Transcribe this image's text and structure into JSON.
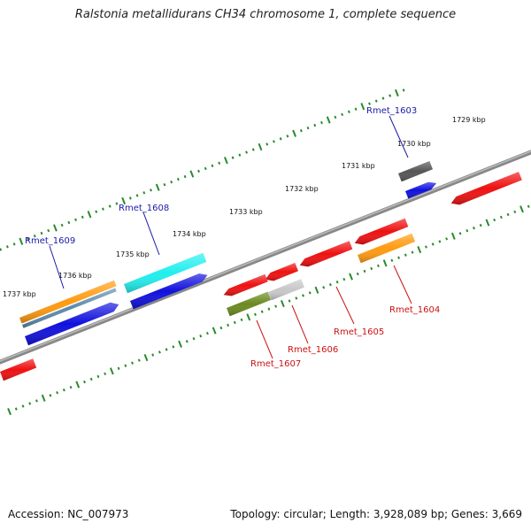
{
  "title": "Ralstonia metallidurans CH34 chromosome 1, complete sequence",
  "footer": {
    "accession": "Accession: NC_007973",
    "info": "Topology: circular; Length: 3,928,089 bp; Genes: 3,669"
  },
  "kbp_ticks": [
    {
      "label": "1729 kbp"
    },
    {
      "label": "1730 kbp"
    },
    {
      "label": "1731 kbp"
    },
    {
      "label": "1732 kbp"
    },
    {
      "label": "1733 kbp"
    },
    {
      "label": "1734 kbp"
    },
    {
      "label": "1735 kbp"
    },
    {
      "label": "1736 kbp"
    },
    {
      "label": "1737 kbp"
    }
  ],
  "gene_labels": [
    {
      "text": "Rmet_1603",
      "color": "#1a1aa8"
    },
    {
      "text": "Rmet_1608",
      "color": "#1a1aa8"
    },
    {
      "text": "Rmet_1609",
      "color": "#1a1aa8"
    },
    {
      "text": "Rmet_1604",
      "color": "#cc1111"
    },
    {
      "text": "Rmet_1605",
      "color": "#cc1111"
    },
    {
      "text": "Rmet_1606",
      "color": "#cc1111"
    },
    {
      "text": "Rmet_1607",
      "color": "#cc1111"
    }
  ],
  "colors": {
    "backbone": "#888888",
    "tick": "#2a8a2a",
    "red": "#ee1111",
    "blue": "#1010dd",
    "cyan": "#22eeee",
    "orange": "#ff9a10",
    "steelblue": "#5a8ab0",
    "gray": "#555555",
    "lightgray": "#c8c8c8",
    "olive": "#6a8a20"
  }
}
